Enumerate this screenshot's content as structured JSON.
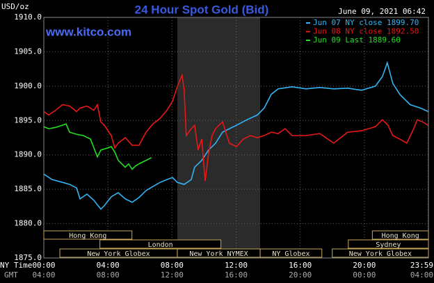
{
  "chart_data": {
    "type": "line",
    "title": "24 Hour Spot Gold (Bid)",
    "timestamp": "June 09, 2021 06:42",
    "watermark": "www.kitco.com",
    "y_label": "USD/oz",
    "x_label": "NY Time",
    "x2_label": "GMT",
    "ylim": [
      1875,
      1910
    ],
    "yticks": [
      {
        "value": 1910,
        "label": "1910.0"
      },
      {
        "value": 1905,
        "label": "1905.0"
      },
      {
        "value": 1900,
        "label": "1900.0"
      },
      {
        "value": 1895,
        "label": "1895.0"
      },
      {
        "value": 1890,
        "label": "1890.0"
      },
      {
        "value": 1885,
        "label": "1885.0"
      },
      {
        "value": 1880,
        "label": "1880.0"
      },
      {
        "value": 1875,
        "label": "1875.0"
      }
    ],
    "xlim": [
      0,
      24
    ],
    "xticks": [
      {
        "value": 0,
        "label": "00:00"
      },
      {
        "value": 4,
        "label": "04:00"
      },
      {
        "value": 8,
        "label": "08:00"
      },
      {
        "value": 12,
        "label": "12:00"
      },
      {
        "value": 16,
        "label": "16:00"
      },
      {
        "value": 20,
        "label": "20:00"
      },
      {
        "value": 23.98,
        "label": "23:59"
      }
    ],
    "x2tick_labels": [
      "04:00",
      "08:00",
      "12:00",
      "16:00",
      "20:00",
      "00:00",
      "04:00"
    ],
    "grid": true,
    "shaded_range": [
      8.33,
      13.5
    ],
    "session_rows": [
      [
        {
          "label": "Hong Kong",
          "start": 0,
          "end": 5.5
        },
        {
          "label": "Hong Kong",
          "start": 20.5,
          "end": 24
        }
      ],
      [
        {
          "label": "London",
          "start": 3.5,
          "end": 11.05
        },
        {
          "label": "Sydney",
          "start": 19,
          "end": 24
        }
      ],
      [
        {
          "label": "New York Globex",
          "start": 1,
          "end": 8.33
        },
        {
          "label": "New York NYMEX",
          "start": 8.33,
          "end": 13.5
        },
        {
          "label": "NY Globex",
          "start": 13.5,
          "end": 17.35
        },
        {
          "label": "New York Globex",
          "start": 18,
          "end": 24
        }
      ]
    ],
    "series": [
      {
        "name": "Jun 07 NY close 1899.70",
        "color": "#33b5f5",
        "x": [
          0,
          0.52,
          1.17,
          1.61,
          2.04,
          2.26,
          2.69,
          3.12,
          3.56,
          3.77,
          4.21,
          4.64,
          5.08,
          5.51,
          5.94,
          6.38,
          6.81,
          7.25,
          7.68,
          8.03,
          8.33,
          8.76,
          9.2,
          9.41,
          9.85,
          10.28,
          10.72,
          11.15,
          11.58,
          12.02,
          12.67,
          13.32,
          13.75,
          14.19,
          14.62,
          15.49,
          16.36,
          17.22,
          18.09,
          18.96,
          19.83,
          20.69,
          21.13,
          21.43,
          21.78,
          22.21,
          22.86,
          23.51,
          23.98
        ],
        "values": [
          1887.2,
          1886.4,
          1886.0,
          1885.7,
          1885.2,
          1883.6,
          1884.3,
          1883.4,
          1882.1,
          1882.6,
          1883.9,
          1884.5,
          1883.6,
          1883.1,
          1883.8,
          1884.8,
          1885.4,
          1886.0,
          1886.4,
          1886.7,
          1886.0,
          1885.7,
          1886.4,
          1888.2,
          1889.2,
          1890.7,
          1891.7,
          1893.3,
          1893.8,
          1894.3,
          1895.1,
          1895.8,
          1896.8,
          1898.8,
          1899.6,
          1899.9,
          1899.6,
          1899.8,
          1899.6,
          1899.7,
          1899.4,
          1900.0,
          1901.4,
          1903.4,
          1900.4,
          1898.8,
          1897.3,
          1896.8,
          1896.3
        ]
      },
      {
        "name": "Jun 08 NY close 1892.50",
        "color": "#e81818",
        "x": [
          0,
          0.3,
          0.74,
          1.17,
          1.61,
          2.04,
          2.26,
          2.69,
          3.12,
          3.34,
          3.56,
          3.77,
          4.21,
          4.43,
          4.64,
          5.08,
          5.51,
          5.94,
          6.38,
          6.81,
          7.25,
          7.68,
          8.03,
          8.33,
          8.63,
          8.76,
          8.89,
          9.2,
          9.41,
          9.63,
          9.85,
          10.07,
          10.28,
          10.5,
          10.72,
          11.15,
          11.58,
          12.02,
          12.45,
          12.89,
          13.32,
          13.75,
          14.19,
          14.62,
          15.05,
          15.49,
          16.36,
          17.22,
          18.09,
          18.96,
          19.83,
          20.69,
          21.13,
          21.48,
          21.78,
          22.21,
          22.65,
          23.08,
          23.3,
          23.64,
          23.98
        ],
        "values": [
          1896.3,
          1895.8,
          1896.5,
          1897.3,
          1897.1,
          1896.3,
          1896.8,
          1897.1,
          1896.5,
          1897.3,
          1894.8,
          1894.3,
          1892.8,
          1891.0,
          1891.7,
          1892.5,
          1891.4,
          1891.4,
          1893.3,
          1894.5,
          1895.3,
          1896.5,
          1897.8,
          1899.9,
          1901.6,
          1899.4,
          1892.8,
          1893.8,
          1894.3,
          1890.7,
          1892.3,
          1886.2,
          1890.2,
          1892.8,
          1893.8,
          1894.8,
          1891.7,
          1891.2,
          1892.3,
          1892.8,
          1892.5,
          1892.8,
          1893.3,
          1893.1,
          1893.8,
          1892.8,
          1892.8,
          1893.1,
          1891.7,
          1893.3,
          1893.5,
          1894.1,
          1895.1,
          1894.3,
          1892.8,
          1892.3,
          1891.7,
          1893.8,
          1895.1,
          1894.8,
          1894.3
        ]
      },
      {
        "name": "Jun 09 Last 1889.60",
        "color": "#22e022",
        "x": [
          0,
          0.3,
          0.74,
          1.39,
          1.61,
          2.04,
          2.47,
          2.91,
          3.34,
          3.56,
          3.99,
          4.21,
          4.43,
          4.64,
          4.86,
          5.08,
          5.29,
          5.51,
          5.73,
          5.94,
          6.38,
          6.72
        ],
        "values": [
          1894.1,
          1893.8,
          1894.0,
          1894.5,
          1893.3,
          1893.0,
          1892.8,
          1892.3,
          1889.7,
          1890.7,
          1891.0,
          1891.2,
          1890.4,
          1889.2,
          1888.7,
          1888.2,
          1888.7,
          1887.9,
          1888.4,
          1888.7,
          1889.2,
          1889.6
        ]
      }
    ]
  }
}
